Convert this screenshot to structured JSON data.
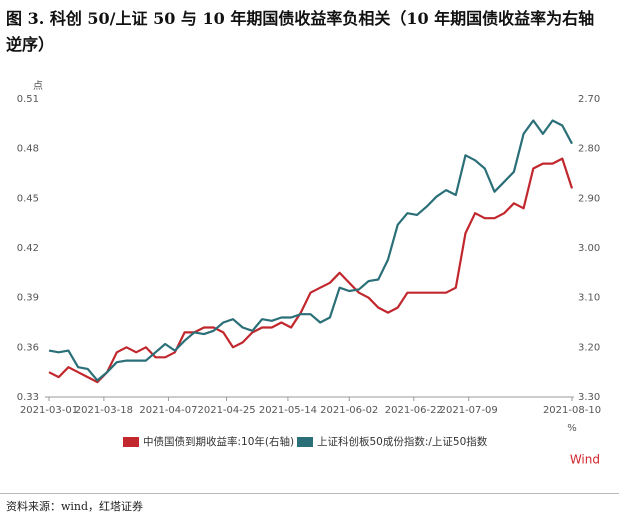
{
  "chart_data": {
    "type": "line",
    "title": "图 3. 科创 50/上证 50 与 10 年期国债收益率负相关（10 年期国债收益率为右轴逆序）",
    "source": "资料来源：wind，红塔证券",
    "y_unit": "点",
    "y2_unit": "%",
    "watermark": "Wind",
    "x": [
      "2021-03-01",
      "2021-03-04",
      "2021-03-07",
      "2021-03-10",
      "2021-03-13",
      "2021-03-16",
      "2021-03-19",
      "2021-03-22",
      "2021-03-25",
      "2021-03-28",
      "2021-03-31",
      "2021-04-03",
      "2021-04-06",
      "2021-04-09",
      "2021-04-12",
      "2021-04-15",
      "2021-04-18",
      "2021-04-21",
      "2021-04-24",
      "2021-04-27",
      "2021-04-30",
      "2021-05-03",
      "2021-05-06",
      "2021-05-09",
      "2021-05-12",
      "2021-05-15",
      "2021-05-18",
      "2021-05-21",
      "2021-05-24",
      "2021-05-27",
      "2021-05-30",
      "2021-06-02",
      "2021-06-05",
      "2021-06-08",
      "2021-06-11",
      "2021-06-14",
      "2021-06-17",
      "2021-06-20",
      "2021-06-23",
      "2021-06-26",
      "2021-06-29",
      "2021-07-02",
      "2021-07-05",
      "2021-07-08",
      "2021-07-11",
      "2021-07-14",
      "2021-07-17",
      "2021-07-20",
      "2021-07-23",
      "2021-07-26",
      "2021-07-29",
      "2021-08-01",
      "2021-08-04",
      "2021-08-07",
      "2021-08-10"
    ],
    "xlim": [
      "2021-03-01",
      "2021-08-10"
    ],
    "xticks": [
      "2021-03-01",
      "2021-03-18",
      "2021-04-07",
      "2021-04-25",
      "2021-05-14",
      "2021-06-02",
      "2021-06-22",
      "2021-07-09",
      "2021-08-10"
    ],
    "ylim": [
      0.33,
      0.51
    ],
    "yticks": [
      0.33,
      0.36,
      0.39,
      0.42,
      0.45,
      0.48,
      0.51
    ],
    "y2lim": [
      2.7,
      3.3
    ],
    "y2_inverted": true,
    "y2ticks": [
      {
        "value": 2.7,
        "label": "2.70"
      },
      {
        "value": 2.8,
        "label": "2.80"
      },
      {
        "value": 2.9,
        "label": "2.90"
      },
      {
        "value": 3.0,
        "label": "3.00"
      },
      {
        "value": 3.1,
        "label": "3.10"
      },
      {
        "value": 3.2,
        "label": "3.20"
      },
      {
        "value": 3.3,
        "label": "3.30"
      }
    ],
    "grid": false,
    "series": [
      {
        "name": "中债国债到期收益率:10年(右轴)",
        "color": "#c1272d",
        "axis": "y2",
        "values": [
          3.25,
          3.26,
          3.24,
          3.25,
          3.26,
          3.27,
          3.25,
          3.21,
          3.2,
          3.21,
          3.2,
          3.22,
          3.22,
          3.21,
          3.17,
          3.17,
          3.16,
          3.16,
          3.17,
          3.2,
          3.19,
          3.17,
          3.16,
          3.16,
          3.15,
          3.16,
          3.13,
          3.09,
          3.08,
          3.07,
          3.05,
          3.07,
          3.09,
          3.1,
          3.12,
          3.13,
          3.12,
          3.09,
          3.09,
          3.09,
          3.09,
          3.09,
          3.08,
          2.97,
          2.93,
          2.94,
          2.94,
          2.93,
          2.91,
          2.92,
          2.84,
          2.83,
          2.83,
          2.82,
          2.88
        ]
      },
      {
        "name": "上证科创板50成份指数:/上证50指数",
        "color": "#2b6f78",
        "values": [
          0.358,
          0.357,
          0.358,
          0.348,
          0.347,
          0.34,
          0.345,
          0.351,
          0.352,
          0.352,
          0.352,
          0.357,
          0.362,
          0.358,
          0.364,
          0.369,
          0.368,
          0.37,
          0.375,
          0.377,
          0.372,
          0.37,
          0.377,
          0.376,
          0.378,
          0.378,
          0.38,
          0.38,
          0.375,
          0.378,
          0.396,
          0.394,
          0.395,
          0.4,
          0.401,
          0.413,
          0.434,
          0.441,
          0.44,
          0.445,
          0.451,
          0.455,
          0.452,
          0.476,
          0.473,
          0.468,
          0.454,
          0.46,
          0.466,
          0.489,
          0.497,
          0.489,
          0.497,
          0.494,
          0.483
        ]
      }
    ]
  }
}
